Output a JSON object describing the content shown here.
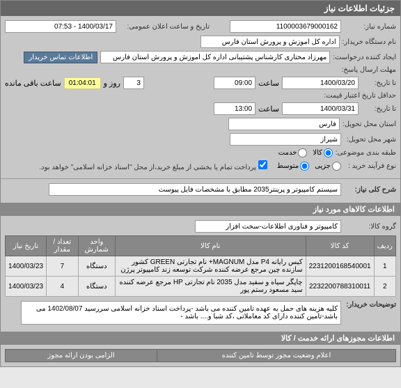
{
  "header": "جزئیات اطلاعات نیاز",
  "need_number_label": "شماره نیاز:",
  "need_number": "1100003679000162",
  "announce_label": "تاریخ و ساعت اعلان عمومی:",
  "announce_value": "1400/03/17 - 07:53",
  "buyer_org_label": "نام دستگاه خریدار:",
  "buyer_org": "اداره کل اموزش و پرورش استان فارس",
  "creator_label": "ایجاد کننده درخواست:",
  "creator": "مهرزاد مختاری کارشناس پشتیبانی اداره کل اموزش و پرورش استان فارس",
  "contact_btn": "اطلاعات تماس خریدار",
  "deadline_label": "مهلت ارسال پاسخ:",
  "until_label": "تا تاریخ:",
  "deadline_date": "1400/03/20",
  "time_label": "ساعت",
  "deadline_time": "09:00",
  "day_label": "روز و",
  "days_remain": "3",
  "timer": "01:04:01",
  "remain_label": "ساعت باقی مانده",
  "validity_label": "حداقل تاریخ اعتبار قیمت:",
  "validity_until_label": "تا تاریخ:",
  "validity_date": "1400/03/31",
  "validity_time": "13:00",
  "delivery_province_label": "استان محل تحویل:",
  "delivery_province": "فارس",
  "delivery_city_label": "شهر محل تحویل:",
  "delivery_city": "شیراز",
  "budget_label": "طبقه بندی موضوعی:",
  "budget_opts": {
    "goods": "کالا",
    "service": "خدمت"
  },
  "buy_type_label": "نوع فرآیند خرید :",
  "buy_type_opts": {
    "low": "جزیی",
    "mid": "متوسط"
  },
  "payment_note": "پرداخت تمام یا بخشی از مبلغ خرید،از محل \"اسناد خزانه اسلامی\" خواهد بود.",
  "summary_label": "شرح کلی نیاز:",
  "summary": "سیستم کامپیوتر و پرینتر2035 مطابق با مشخصات فایل پیوست",
  "items_header": "اطلاعات کالاهای مورد نیاز",
  "group_label": "گروه کالا:",
  "group": "کامپیوتر و فناوری اطلاعات-سخت افزار",
  "cols": {
    "row": "ردیف",
    "code": "کد کالا",
    "name": "نام کالا",
    "unit": "واحد شمارش",
    "qty": "تعداد / مقدار",
    "date": "تاریخ نیاز"
  },
  "items": [
    {
      "row": "1",
      "code": "2231200168540001",
      "name": "کیس رایانه P4 مدل MAGNUM+ نام تجارتی GREEN کشور سازنده چین مرجع عرضه کننده شرکت توسعه زند کامپیوتر پرژن",
      "unit": "دستگاه",
      "qty": "7",
      "date": "1400/03/23"
    },
    {
      "row": "2",
      "code": "2232200788310011",
      "name": "چاپگر سیاه و سفید مدل 2035 نام تجارتی HP مرجع عرضه کننده سید مسعود رستم پور",
      "unit": "دستگاه",
      "qty": "4",
      "date": "1400/03/23"
    }
  ],
  "buyer_notes_label": "توضیحات خریدار:",
  "buyer_notes": "کلیه هزینه های حمل به عهده تامین کننده می باشد -پرداخت اسناد خزانه اسلامی سررسید 1402/08/07 می باشد-تامین کننده دارای کد معاملاتی ،کد شبا و.... باشد -",
  "permits_header": "اطلاعات مجوزهای ارائه خدمت / کالا",
  "footer_right": "اعلام وضعیت مجوز توسط تامین کننده",
  "footer_left": "الزامی بودن ارائه مجوز"
}
